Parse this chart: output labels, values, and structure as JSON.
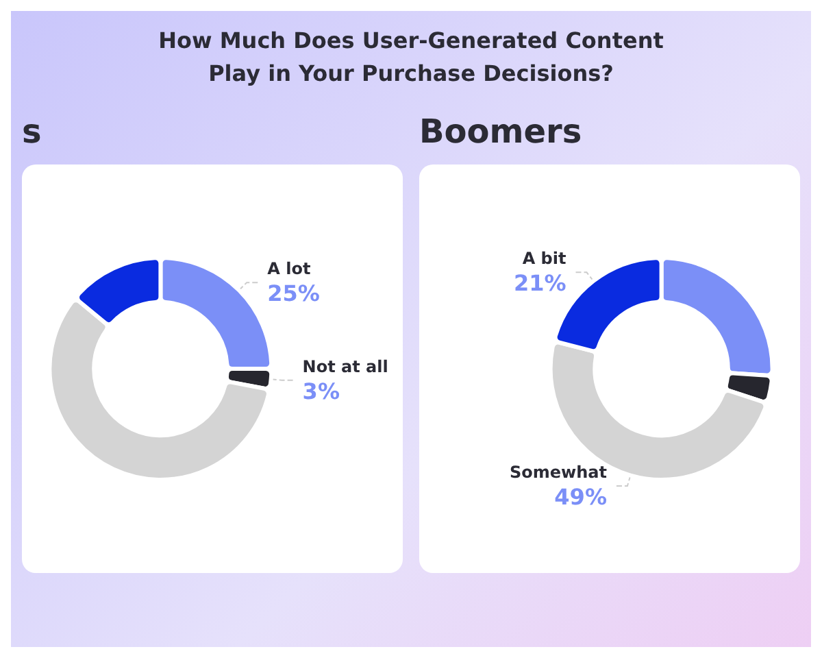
{
  "chart_data": [
    {
      "type": "donut",
      "title": "How Much Does User-Generated Content Play in Your Purchase Decisions?",
      "subtitle": "s",
      "categories": [
        "A lot",
        "Not at all",
        null,
        null
      ],
      "values": [
        25,
        3,
        58,
        14
      ],
      "value_labels": [
        "25%",
        "3%",
        null,
        null
      ],
      "colors": [
        "#7b8ff7",
        "#26262e",
        "#d4d4d4",
        "#0a2be0"
      ],
      "legend": false
    },
    {
      "type": "donut",
      "title": "Boomers",
      "categories": [
        null,
        null,
        "Somewhat",
        "A bit"
      ],
      "values": [
        26,
        4,
        49,
        21
      ],
      "value_labels": [
        null,
        null,
        "49%",
        "21%"
      ],
      "colors": [
        "#7b8ff7",
        "#26262e",
        "#d4d4d4",
        "#0a2be0"
      ],
      "legend": false
    }
  ]
}
